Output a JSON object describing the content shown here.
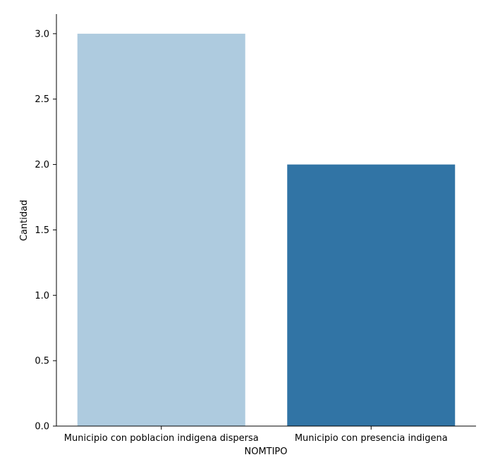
{
  "chart_data": {
    "type": "bar",
    "categories": [
      "Municipio con poblacion indigena dispersa",
      "Municipio con presencia indigena"
    ],
    "values": [
      3.0,
      2.0
    ],
    "colors": [
      "#aecbdf",
      "#3174a5"
    ],
    "title": "",
    "xlabel": "NOMTIPO",
    "ylabel": "Cantidad",
    "ylim": [
      0,
      3.15
    ],
    "yticks": [
      0.0,
      0.5,
      1.0,
      1.5,
      2.0,
      2.5,
      3.0
    ],
    "ytick_labels": [
      "0.0",
      "0.5",
      "1.0",
      "1.5",
      "2.0",
      "2.5",
      "3.0"
    ],
    "grid": false,
    "legend": "none"
  }
}
